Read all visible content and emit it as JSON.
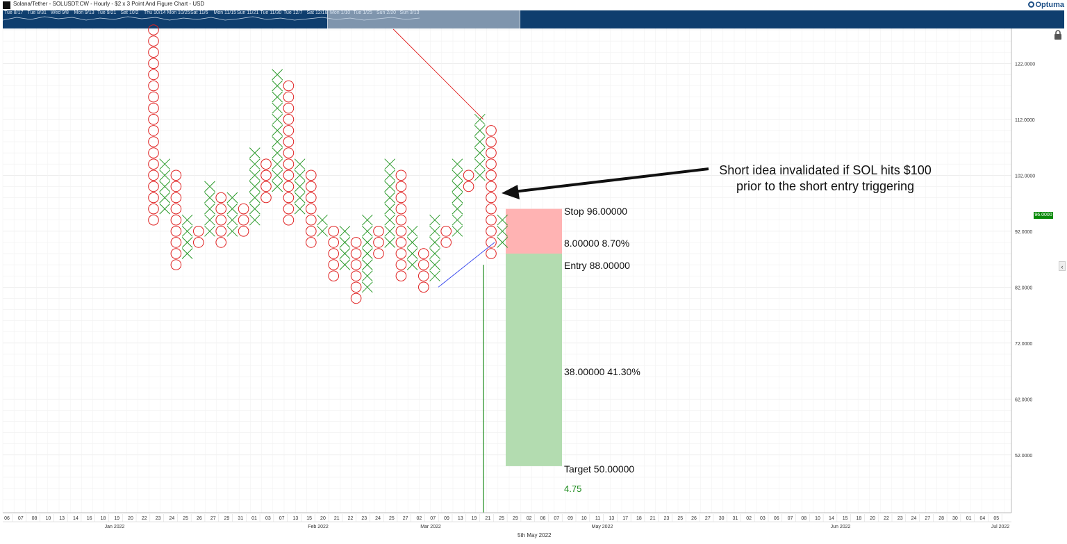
{
  "window": {
    "title": "Solana/Tether - SOLUSDT:CW - Hourly - $2 x 3 Point And Figure Chart - USD",
    "brand": "Optuma"
  },
  "overview": {
    "labels": [
      "Tue 8/17",
      "Tue 8/31",
      "Wed 9/8",
      "Mon 9/13",
      "Tue 9/21",
      "Sat 10/2",
      "Thu 10/14",
      "Mon 10/25",
      "Sat 11/6",
      "Mon 11/15",
      "Sun 11/21",
      "Tue 11/30",
      "Tue 12/7",
      "Sat 12/18",
      "Mon 1/10",
      "Tue 1/25",
      "Sun 2/20",
      "Sun 3/13"
    ]
  },
  "annotation": {
    "line1": "Short idea invalidated if SOL hits $100",
    "line2": "prior to the short entry triggering"
  },
  "risk_reward": {
    "stop_label": "Stop   96.00000",
    "risk_label": "8.00000   8.70%",
    "entry_label": "Entry   88.00000",
    "reward_label": "38.00000   41.30%",
    "target_label": "Target   50.00000",
    "ratio": "4.75",
    "stop_color": "#ffb3b3",
    "target_color": "#b3dcb0"
  },
  "current_price": "96.0000",
  "date_label": "5th May 2022",
  "colors": {
    "x": "#2a9a2a",
    "o": "#e02020",
    "overview_bg": "#0f3e6e",
    "price_tag": "#0a8a0a"
  },
  "chart_data": {
    "type": "point_and_figure",
    "title": "Solana/Tether - SOLUSDT:CW - Hourly - $2 x 3 Point And Figure Chart - USD",
    "box_size": 2,
    "reversal": 3,
    "ylim": [
      44,
      132
    ],
    "y_ticks": [
      52,
      62,
      72,
      82,
      92,
      102,
      112,
      122
    ],
    "y_tick_labels": [
      "52.0000",
      "62.0000",
      "72.0000",
      "82.0000",
      "92.0000",
      "102.0000",
      "112.0000",
      "122.0000"
    ],
    "columns": [
      {
        "type": "O",
        "high": 128,
        "low": 94
      },
      {
        "type": "X",
        "high": 104,
        "low": 96
      },
      {
        "type": "O",
        "high": 102,
        "low": 86
      },
      {
        "type": "X",
        "high": 94,
        "low": 88
      },
      {
        "type": "O",
        "high": 92,
        "low": 90
      },
      {
        "type": "X",
        "high": 100,
        "low": 92
      },
      {
        "type": "O",
        "high": 98,
        "low": 90
      },
      {
        "type": "X",
        "high": 98,
        "low": 92
      },
      {
        "type": "O",
        "high": 96,
        "low": 92
      },
      {
        "type": "X",
        "high": 106,
        "low": 94
      },
      {
        "type": "O",
        "high": 104,
        "low": 98
      },
      {
        "type": "X",
        "high": 120,
        "low": 100
      },
      {
        "type": "O",
        "high": 118,
        "low": 94
      },
      {
        "type": "X",
        "high": 104,
        "low": 96
      },
      {
        "type": "O",
        "high": 102,
        "low": 90
      },
      {
        "type": "X",
        "high": 94,
        "low": 92
      },
      {
        "type": "O",
        "high": 92,
        "low": 84
      },
      {
        "type": "X",
        "high": 92,
        "low": 86
      },
      {
        "type": "O",
        "high": 90,
        "low": 80
      },
      {
        "type": "X",
        "high": 94,
        "low": 82
      },
      {
        "type": "O",
        "high": 92,
        "low": 88
      },
      {
        "type": "X",
        "high": 104,
        "low": 90
      },
      {
        "type": "O",
        "high": 102,
        "low": 84
      },
      {
        "type": "X",
        "high": 92,
        "low": 86
      },
      {
        "type": "O",
        "high": 88,
        "low": 82
      },
      {
        "type": "X",
        "high": 94,
        "low": 84
      },
      {
        "type": "O",
        "high": 92,
        "low": 90
      },
      {
        "type": "X",
        "high": 104,
        "low": 92
      },
      {
        "type": "O",
        "high": 102,
        "low": 100
      },
      {
        "type": "X",
        "high": 112,
        "low": 102
      },
      {
        "type": "O",
        "high": 110,
        "low": 88
      },
      {
        "type": "X",
        "high": 94,
        "low": 90
      }
    ],
    "trendlines": [
      {
        "color": "#e02020",
        "from": {
          "col": 21,
          "price": 132
        },
        "to": {
          "col": 29,
          "price": 112
        }
      },
      {
        "color": "#3344ee",
        "from": {
          "col": 25,
          "price": 82
        },
        "to": {
          "col": 30,
          "price": 90
        }
      }
    ],
    "vline": {
      "col": 30,
      "from_price": 86,
      "to_price": 42
    },
    "position": {
      "stop": 96,
      "entry": 88,
      "target": 50
    },
    "x_tick_labels": [
      "06",
      "07",
      "08",
      "10",
      "13",
      "14",
      "16",
      "18",
      "19",
      "20",
      "22",
      "23",
      "24",
      "25",
      "26",
      "27",
      "29",
      "31",
      "01",
      "03",
      "07",
      "13",
      "15",
      "20",
      "21",
      "22",
      "23",
      "24",
      "25",
      "27",
      "02",
      "07",
      "09",
      "13",
      "19",
      "21",
      "25",
      "29",
      "02",
      "06",
      "07",
      "09",
      "10",
      "11",
      "13",
      "17",
      "18",
      "21",
      "23",
      "25",
      "26",
      "27",
      "30",
      "31",
      "02",
      "03",
      "06",
      "07",
      "08",
      "10",
      "14",
      "15",
      "18",
      "20",
      "22",
      "23",
      "24",
      "27",
      "28",
      "30",
      "01",
      "04",
      "05"
    ],
    "x_month_labels": [
      "Jan 2022",
      "Feb 2022",
      "Mar 2022",
      "May 2022",
      "Jun 2022",
      "Jul 2022"
    ]
  }
}
